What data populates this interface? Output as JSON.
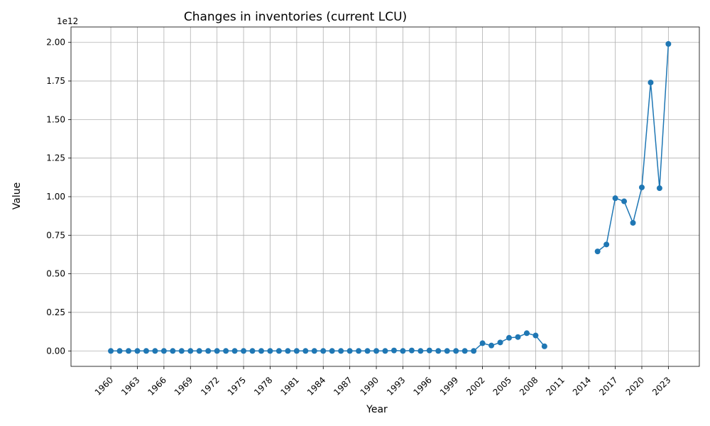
{
  "chart_data": {
    "type": "line",
    "title": "Changes in inventories (current LCU)",
    "xlabel": "Year",
    "ylabel": "Value",
    "y_scale_label": "1e12",
    "xlim": [
      1955.5,
      2026.5
    ],
    "ylim": [
      -0.1,
      2.1
    ],
    "y_unit_multiplier": 1000000000000.0,
    "grid": true,
    "color": "#1f77b4",
    "x_ticks": [
      1960,
      1963,
      1966,
      1969,
      1972,
      1975,
      1978,
      1981,
      1984,
      1987,
      1990,
      1993,
      1996,
      1999,
      2002,
      2005,
      2008,
      2011,
      2014,
      2017,
      2020,
      2023
    ],
    "x_tick_labels": [
      "1960",
      "1963",
      "1966",
      "1969",
      "1972",
      "1975",
      "1978",
      "1981",
      "1984",
      "1987",
      "1990",
      "1993",
      "1996",
      "1999",
      "2002",
      "2005",
      "2008",
      "2011",
      "2014",
      "2017",
      "2020",
      "2023"
    ],
    "y_ticks": [
      0,
      0.25,
      0.5,
      0.75,
      1.0,
      1.25,
      1.5,
      1.75,
      2.0
    ],
    "y_tick_labels": [
      "0.00",
      "0.25",
      "0.50",
      "0.75",
      "1.00",
      "1.25",
      "1.50",
      "1.75",
      "2.00"
    ],
    "x": [
      1960,
      1961,
      1962,
      1963,
      1964,
      1965,
      1966,
      1967,
      1968,
      1969,
      1970,
      1971,
      1972,
      1973,
      1974,
      1975,
      1976,
      1977,
      1978,
      1979,
      1980,
      1981,
      1982,
      1983,
      1984,
      1985,
      1986,
      1987,
      1988,
      1989,
      1990,
      1991,
      1992,
      1993,
      1994,
      1995,
      1996,
      1997,
      1998,
      1999,
      2000,
      2001,
      2002,
      2003,
      2004,
      2005,
      2006,
      2007,
      2008,
      2009,
      2015,
      2016,
      2017,
      2018,
      2019,
      2020,
      2021,
      2022,
      2023
    ],
    "values": [
      0,
      0,
      0,
      0,
      0,
      0,
      0,
      0,
      0,
      0,
      0,
      0,
      0,
      0,
      0,
      0,
      0,
      0,
      0,
      0,
      0,
      0,
      0,
      0,
      0,
      0,
      0,
      0,
      0,
      0,
      0,
      0,
      0.003,
      0,
      0.003,
      0,
      0.003,
      0,
      0,
      0,
      0,
      0,
      0.05,
      0.035,
      0.055,
      0.085,
      0.09,
      0.115,
      0.1,
      0.03,
      0.645,
      0.69,
      0.99,
      0.97,
      0.83,
      1.06,
      1.74,
      1.055,
      1.99
    ],
    "segments": [
      [
        1960,
        2009
      ],
      [
        2015,
        2023
      ]
    ]
  }
}
